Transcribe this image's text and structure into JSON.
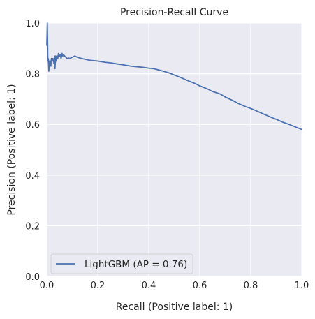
{
  "chart_data": {
    "type": "line",
    "title": "Precision-Recall Curve",
    "xlabel": "Recall (Positive label: 1)",
    "ylabel": "Precision (Positive label: 1)",
    "xlim": [
      0,
      1
    ],
    "ylim": [
      0,
      1
    ],
    "xticks": [
      "0.0",
      "0.2",
      "0.4",
      "0.6",
      "0.8",
      "1.0"
    ],
    "yticks": [
      "0.0",
      "0.2",
      "0.4",
      "0.6",
      "0.8",
      "1.0"
    ],
    "grid": true,
    "legend_position": "lower-left",
    "background_color": "#eaeaf2",
    "grid_color": "#ffffff",
    "series": [
      {
        "name": "LightGBM (AP = 0.76)",
        "color": "#4c72b0",
        "x": [
          0.0,
          0.002,
          0.003,
          0.004,
          0.006,
          0.008,
          0.01,
          0.012,
          0.014,
          0.016,
          0.018,
          0.02,
          0.024,
          0.028,
          0.03,
          0.032,
          0.035,
          0.038,
          0.04,
          0.043,
          0.046,
          0.05,
          0.053,
          0.056,
          0.06,
          0.063,
          0.066,
          0.07,
          0.075,
          0.08,
          0.085,
          0.09,
          0.1,
          0.11,
          0.12,
          0.13,
          0.15,
          0.17,
          0.2,
          0.23,
          0.25,
          0.28,
          0.3,
          0.33,
          0.35,
          0.38,
          0.4,
          0.42,
          0.45,
          0.48,
          0.5,
          0.53,
          0.55,
          0.58,
          0.6,
          0.63,
          0.65,
          0.68,
          0.7,
          0.73,
          0.75,
          0.78,
          0.8,
          0.83,
          0.85,
          0.88,
          0.9,
          0.93,
          0.95,
          0.98,
          1.0
        ],
        "y": [
          0.91,
          1.0,
          0.94,
          0.85,
          0.86,
          0.81,
          0.85,
          0.84,
          0.85,
          0.83,
          0.86,
          0.85,
          0.86,
          0.84,
          0.87,
          0.82,
          0.87,
          0.85,
          0.87,
          0.86,
          0.88,
          0.87,
          0.875,
          0.86,
          0.88,
          0.87,
          0.875,
          0.87,
          0.865,
          0.86,
          0.862,
          0.86,
          0.865,
          0.87,
          0.865,
          0.862,
          0.857,
          0.853,
          0.85,
          0.845,
          0.843,
          0.838,
          0.835,
          0.83,
          0.828,
          0.825,
          0.822,
          0.82,
          0.812,
          0.803,
          0.795,
          0.783,
          0.774,
          0.762,
          0.752,
          0.74,
          0.73,
          0.72,
          0.708,
          0.694,
          0.683,
          0.67,
          0.663,
          0.65,
          0.641,
          0.628,
          0.62,
          0.607,
          0.6,
          0.588,
          0.58
        ]
      }
    ]
  }
}
